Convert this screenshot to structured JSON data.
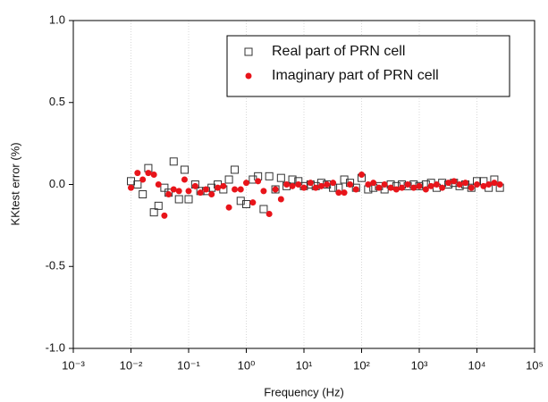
{
  "chart_data": {
    "type": "scatter",
    "xlabel": "Frequency (Hz)",
    "ylabel": "KKtest error (%)",
    "xscale": "log",
    "xlim": [
      0.001,
      100000
    ],
    "xticks": [
      {
        "value": 0.001,
        "label": "10⁻³"
      },
      {
        "value": 0.01,
        "label": "10⁻²"
      },
      {
        "value": 0.1,
        "label": "10⁻¹"
      },
      {
        "value": 1,
        "label": "10⁰"
      },
      {
        "value": 10,
        "label": "10¹"
      },
      {
        "value": 100,
        "label": "10²"
      },
      {
        "value": 1000,
        "label": "10³"
      },
      {
        "value": 10000,
        "label": "10⁴"
      },
      {
        "value": 100000,
        "label": "10⁵"
      }
    ],
    "ylim": [
      -1,
      1
    ],
    "yticks": [
      {
        "value": -1,
        "label": "-1.0"
      },
      {
        "value": -0.5,
        "label": "-0.5"
      },
      {
        "value": 0,
        "label": "0.0"
      },
      {
        "value": 0.5,
        "label": "0.5"
      },
      {
        "value": 1,
        "label": "1.0"
      }
    ],
    "grid": true,
    "legend": "upper right",
    "x": [
      0.01,
      0.013,
      0.016,
      0.02,
      0.025,
      0.03,
      0.038,
      0.045,
      0.055,
      0.068,
      0.085,
      0.1,
      0.13,
      0.16,
      0.2,
      0.25,
      0.32,
      0.4,
      0.5,
      0.63,
      0.8,
      1,
      1.3,
      1.6,
      2,
      2.5,
      3.2,
      4,
      5,
      6.3,
      8,
      10,
      13,
      16,
      20,
      25,
      32,
      40,
      50,
      63,
      80,
      100,
      130,
      160,
      200,
      250,
      320,
      400,
      500,
      630,
      800,
      1000,
      1300,
      1600,
      2000,
      2500,
      3200,
      4000,
      5000,
      6300,
      8000,
      10000,
      13000,
      16000,
      20000,
      25000
    ],
    "series": [
      {
        "name": "Real part of PRN cell",
        "color": "#333333",
        "marker": "square",
        "values": [
          0.02,
          0.0,
          -0.06,
          0.1,
          -0.17,
          -0.13,
          -0.02,
          -0.05,
          0.14,
          -0.09,
          0.09,
          -0.09,
          0.0,
          -0.04,
          -0.04,
          -0.02,
          0.0,
          -0.03,
          0.03,
          0.09,
          -0.1,
          -0.12,
          0.03,
          0.05,
          -0.15,
          0.05,
          -0.03,
          0.04,
          -0.01,
          0.03,
          0.02,
          -0.01,
          0.0,
          -0.01,
          0.01,
          0.0,
          -0.02,
          -0.02,
          0.03,
          0.01,
          -0.02,
          0.04,
          -0.03,
          -0.02,
          -0.01,
          -0.03,
          0.0,
          -0.01,
          0.0,
          -0.01,
          0.0,
          -0.01,
          0.0,
          0.01,
          -0.02,
          0.01,
          0.0,
          0.01,
          -0.01,
          0.0,
          -0.02,
          0.02,
          0.02,
          -0.02,
          0.03,
          -0.02
        ]
      },
      {
        "name": "Imaginary part of PRN cell",
        "color": "#e8141a",
        "marker": "circle",
        "values": [
          -0.02,
          0.07,
          0.03,
          0.07,
          0.06,
          0.0,
          -0.19,
          -0.06,
          -0.03,
          -0.04,
          0.03,
          -0.04,
          -0.01,
          -0.05,
          -0.03,
          -0.06,
          -0.02,
          -0.01,
          -0.14,
          -0.03,
          -0.03,
          0.01,
          -0.11,
          0.02,
          -0.04,
          -0.18,
          -0.03,
          -0.09,
          0.0,
          -0.01,
          0.0,
          -0.02,
          0.01,
          -0.02,
          -0.01,
          0.0,
          0.01,
          -0.05,
          -0.05,
          0.0,
          -0.03,
          0.06,
          0.0,
          0.01,
          -0.02,
          0.0,
          -0.02,
          -0.03,
          -0.02,
          0.0,
          -0.02,
          -0.01,
          -0.03,
          -0.01,
          0.0,
          -0.02,
          0.01,
          0.02,
          0.0,
          0.01,
          -0.02,
          0.0,
          -0.01,
          0.0,
          0.01,
          0.0
        ]
      }
    ]
  }
}
